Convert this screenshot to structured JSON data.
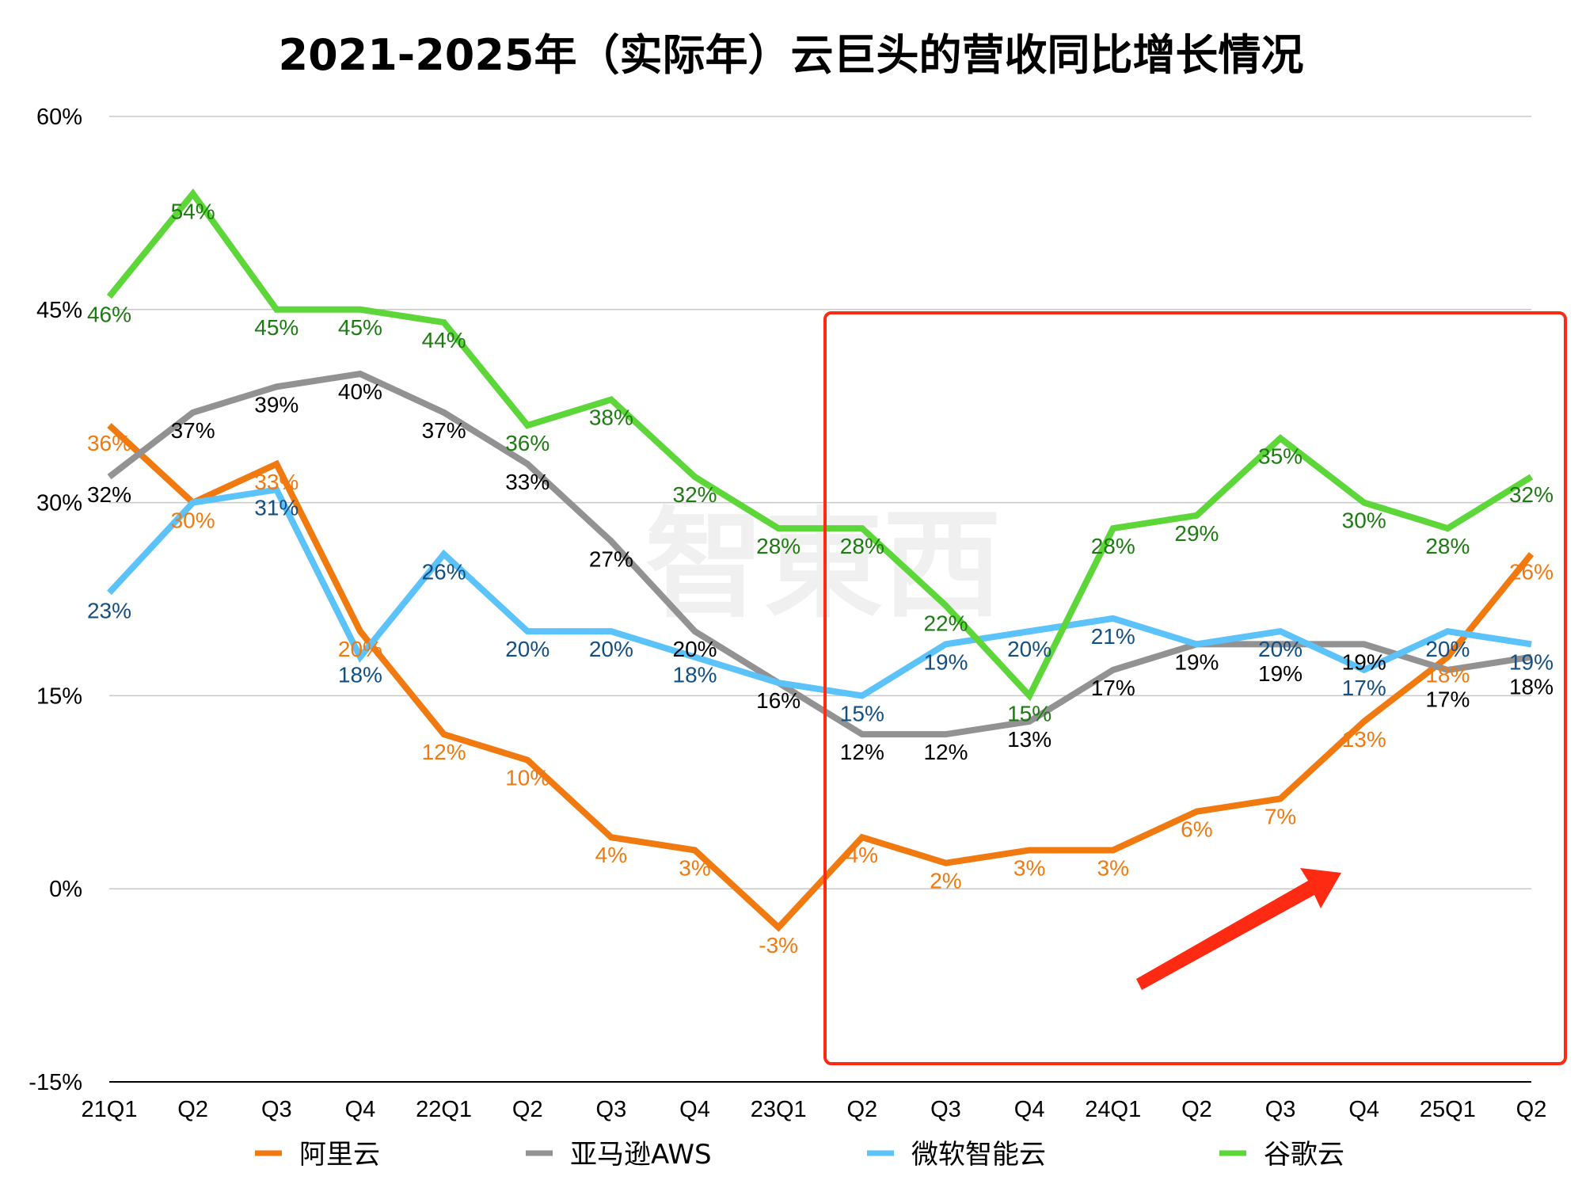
{
  "chart_data": {
    "type": "line",
    "title": "2021-2025年（实际年）云巨头的营收同比增长情况",
    "xlabel": "",
    "ylabel": "",
    "categories": [
      "21Q1",
      "Q2",
      "Q3",
      "Q4",
      "22Q1",
      "Q2",
      "Q3",
      "Q4",
      "23Q1",
      "Q2",
      "Q3",
      "Q4",
      "24Q1",
      "Q2",
      "Q3",
      "Q4",
      "25Q1",
      "Q2"
    ],
    "ylim": [
      -15,
      60
    ],
    "yticks": [
      -15,
      0,
      15,
      30,
      45,
      60
    ],
    "ytick_labels": [
      "-15%",
      "0%",
      "15%",
      "30%",
      "45%",
      "60%"
    ],
    "grid": true,
    "legend_position": "bottom",
    "series": [
      {
        "name": "阿里云",
        "color": "#F07A10",
        "label_color": "#F07A10",
        "values": [
          36,
          30,
          33,
          20,
          12,
          10,
          4,
          3,
          -3,
          4,
          2,
          3,
          3,
          6,
          7,
          13,
          18,
          26
        ],
        "labels_shown": [
          true,
          true,
          true,
          true,
          true,
          true,
          true,
          true,
          true,
          true,
          true,
          true,
          true,
          true,
          true,
          true,
          true,
          true
        ]
      },
      {
        "name": "亚马逊AWS",
        "color": "#929292",
        "label_color": "#000000",
        "values": [
          32,
          37,
          39,
          40,
          37,
          33,
          27,
          20,
          16,
          12,
          12,
          13,
          17,
          19,
          19,
          19,
          17,
          18
        ],
        "labels_shown": [
          true,
          true,
          true,
          true,
          true,
          true,
          true,
          true,
          true,
          true,
          true,
          true,
          true,
          true,
          true,
          true,
          true,
          true
        ]
      },
      {
        "name": "微软智能云",
        "color": "#5BC2FA",
        "label_color": "#144F82",
        "values": [
          23,
          30,
          31,
          18,
          26,
          20,
          20,
          18,
          16,
          15,
          19,
          20,
          21,
          19,
          20,
          17,
          20,
          19
        ],
        "labels_shown": [
          true,
          false,
          true,
          true,
          true,
          true,
          true,
          true,
          false,
          true,
          true,
          true,
          true,
          false,
          true,
          true,
          true,
          true
        ]
      },
      {
        "name": "谷歌云",
        "color": "#5DD639",
        "label_color": "#1E7A12",
        "values": [
          46,
          54,
          45,
          45,
          44,
          36,
          38,
          32,
          28,
          28,
          22,
          15,
          28,
          29,
          35,
          30,
          28,
          32
        ],
        "labels_shown": [
          true,
          true,
          true,
          true,
          true,
          true,
          true,
          true,
          true,
          true,
          true,
          true,
          true,
          true,
          true,
          true,
          true,
          true
        ]
      }
    ],
    "annotations": {
      "highlight_box": {
        "from_category_index": 9,
        "to_category_index": 17,
        "color": "#FF2A12"
      },
      "arrow": {
        "color": "#FF2A12",
        "direction": "up-right"
      }
    }
  },
  "watermark": "智東西"
}
